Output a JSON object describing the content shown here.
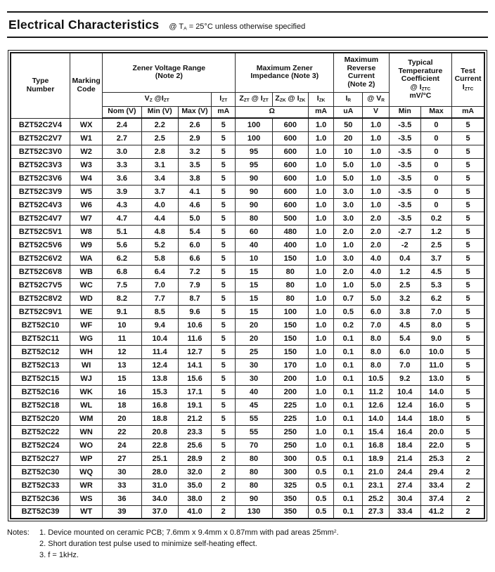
{
  "page": {
    "title": "Electrical Characteristics",
    "subtitle_rich": [
      [
        "@ T",
        0
      ],
      [
        "A",
        1
      ],
      [
        " = 25°C unless otherwise specified",
        0
      ]
    ]
  },
  "table": {
    "header": {
      "type_number": "Type\nNumber",
      "marking_code": "Marking\nCode",
      "zener_voltage_range": "Zener Voltage Range\n(Note 2)",
      "max_zener_impedance": "Maximum Zener\nImpedance (Note 3)",
      "max_reverse_current": "Maximum\nReverse\nCurrent\n(Note 2)",
      "temp_coeff_rich": [
        [
          "Typical\nTemperature\nCoefficient\n@ I",
          0
        ],
        [
          "ZTC",
          1
        ],
        [
          "\nmV/°C",
          0
        ]
      ],
      "test_current_rich": [
        [
          "Test\nCurrent\nI",
          0
        ],
        [
          "ZTC",
          1
        ]
      ],
      "vz_at_izt_rich": [
        [
          "V",
          0
        ],
        [
          "Z",
          1
        ],
        [
          " @I",
          0
        ],
        [
          "ZT",
          1
        ]
      ],
      "izt_rich": [
        [
          "I",
          0
        ],
        [
          "ZT",
          1
        ]
      ],
      "zzt_rich": [
        [
          "Z",
          0
        ],
        [
          "ZT",
          1
        ],
        [
          " @ I",
          0
        ],
        [
          "ZT",
          1
        ]
      ],
      "zzk_rich": [
        [
          "Z",
          0
        ],
        [
          "ZK",
          1
        ],
        [
          " @ I",
          0
        ],
        [
          "ZK",
          1
        ]
      ],
      "izk_rich": [
        [
          "I",
          0
        ],
        [
          "ZK",
          1
        ]
      ],
      "ir_rich": [
        [
          "I",
          0
        ],
        [
          "R",
          1
        ]
      ],
      "vr_rich": [
        [
          "@ V",
          0
        ],
        [
          "R",
          1
        ]
      ],
      "nom": "Nom (V)",
      "min": "Min (V)",
      "max": "Max (V)",
      "ma_izt": "mA",
      "ohm": "Ω",
      "ma_izk": "mA",
      "ua": "uA",
      "v": "V",
      "tc_min": "Min",
      "tc_max": "Max",
      "ma_iztc": "mA"
    },
    "rows": [
      [
        "BZT52C2V4",
        "WX",
        "2.4",
        "2.2",
        "2.6",
        "5",
        "100",
        "600",
        "1.0",
        "50",
        "1.0",
        "-3.5",
        "0",
        "5"
      ],
      [
        "BZT52C2V7",
        "W1",
        "2.7",
        "2.5",
        "2.9",
        "5",
        "100",
        "600",
        "1.0",
        "20",
        "1.0",
        "-3.5",
        "0",
        "5"
      ],
      [
        "BZT52C3V0",
        "W2",
        "3.0",
        "2.8",
        "3.2",
        "5",
        "95",
        "600",
        "1.0",
        "10",
        "1.0",
        "-3.5",
        "0",
        "5"
      ],
      [
        "BZT52C3V3",
        "W3",
        "3.3",
        "3.1",
        "3.5",
        "5",
        "95",
        "600",
        "1.0",
        "5.0",
        "1.0",
        "-3.5",
        "0",
        "5"
      ],
      [
        "BZT52C3V6",
        "W4",
        "3.6",
        "3.4",
        "3.8",
        "5",
        "90",
        "600",
        "1.0",
        "5.0",
        "1.0",
        "-3.5",
        "0",
        "5"
      ],
      [
        "BZT52C3V9",
        "W5",
        "3.9",
        "3.7",
        "4.1",
        "5",
        "90",
        "600",
        "1.0",
        "3.0",
        "1.0",
        "-3.5",
        "0",
        "5"
      ],
      [
        "BZT52C4V3",
        "W6",
        "4.3",
        "4.0",
        "4.6",
        "5",
        "90",
        "600",
        "1.0",
        "3.0",
        "1.0",
        "-3.5",
        "0",
        "5"
      ],
      [
        "BZT52C4V7",
        "W7",
        "4.7",
        "4.4",
        "5.0",
        "5",
        "80",
        "500",
        "1.0",
        "3.0",
        "2.0",
        "-3.5",
        "0.2",
        "5"
      ],
      [
        "BZT52C5V1",
        "W8",
        "5.1",
        "4.8",
        "5.4",
        "5",
        "60",
        "480",
        "1.0",
        "2.0",
        "2.0",
        "-2.7",
        "1.2",
        "5"
      ],
      [
        "BZT52C5V6",
        "W9",
        "5.6",
        "5.2",
        "6.0",
        "5",
        "40",
        "400",
        "1.0",
        "1.0",
        "2.0",
        "-2",
        "2.5",
        "5"
      ],
      [
        "BZT52C6V2",
        "WA",
        "6.2",
        "5.8",
        "6.6",
        "5",
        "10",
        "150",
        "1.0",
        "3.0",
        "4.0",
        "0.4",
        "3.7",
        "5"
      ],
      [
        "BZT52C6V8",
        "WB",
        "6.8",
        "6.4",
        "7.2",
        "5",
        "15",
        "80",
        "1.0",
        "2.0",
        "4.0",
        "1.2",
        "4.5",
        "5"
      ],
      [
        "BZT52C7V5",
        "WC",
        "7.5",
        "7.0",
        "7.9",
        "5",
        "15",
        "80",
        "1.0",
        "1.0",
        "5.0",
        "2.5",
        "5.3",
        "5"
      ],
      [
        "BZT52C8V2",
        "WD",
        "8.2",
        "7.7",
        "8.7",
        "5",
        "15",
        "80",
        "1.0",
        "0.7",
        "5.0",
        "3.2",
        "6.2",
        "5"
      ],
      [
        "BZT52C9V1",
        "WE",
        "9.1",
        "8.5",
        "9.6",
        "5",
        "15",
        "100",
        "1.0",
        "0.5",
        "6.0",
        "3.8",
        "7.0",
        "5"
      ],
      [
        "BZT52C10",
        "WF",
        "10",
        "9.4",
        "10.6",
        "5",
        "20",
        "150",
        "1.0",
        "0.2",
        "7.0",
        "4.5",
        "8.0",
        "5"
      ],
      [
        "BZT52C11",
        "WG",
        "11",
        "10.4",
        "11.6",
        "5",
        "20",
        "150",
        "1.0",
        "0.1",
        "8.0",
        "5.4",
        "9.0",
        "5"
      ],
      [
        "BZT52C12",
        "WH",
        "12",
        "11.4",
        "12.7",
        "5",
        "25",
        "150",
        "1.0",
        "0.1",
        "8.0",
        "6.0",
        "10.0",
        "5"
      ],
      [
        "BZT52C13",
        "WI",
        "13",
        "12.4",
        "14.1",
        "5",
        "30",
        "170",
        "1.0",
        "0.1",
        "8.0",
        "7.0",
        "11.0",
        "5"
      ],
      [
        "BZT52C15",
        "WJ",
        "15",
        "13.8",
        "15.6",
        "5",
        "30",
        "200",
        "1.0",
        "0.1",
        "10.5",
        "9.2",
        "13.0",
        "5"
      ],
      [
        "BZT52C16",
        "WK",
        "16",
        "15.3",
        "17.1",
        "5",
        "40",
        "200",
        "1.0",
        "0.1",
        "11.2",
        "10.4",
        "14.0",
        "5"
      ],
      [
        "BZT52C18",
        "WL",
        "18",
        "16.8",
        "19.1",
        "5",
        "45",
        "225",
        "1.0",
        "0.1",
        "12.6",
        "12.4",
        "16.0",
        "5"
      ],
      [
        "BZT52C20",
        "WM",
        "20",
        "18.8",
        "21.2",
        "5",
        "55",
        "225",
        "1.0",
        "0.1",
        "14.0",
        "14.4",
        "18.0",
        "5"
      ],
      [
        "BZT52C22",
        "WN",
        "22",
        "20.8",
        "23.3",
        "5",
        "55",
        "250",
        "1.0",
        "0.1",
        "15.4",
        "16.4",
        "20.0",
        "5"
      ],
      [
        "BZT52C24",
        "WO",
        "24",
        "22.8",
        "25.6",
        "5",
        "70",
        "250",
        "1.0",
        "0.1",
        "16.8",
        "18.4",
        "22.0",
        "5"
      ],
      [
        "BZT52C27",
        "WP",
        "27",
        "25.1",
        "28.9",
        "2",
        "80",
        "300",
        "0.5",
        "0.1",
        "18.9",
        "21.4",
        "25.3",
        "2"
      ],
      [
        "BZT52C30",
        "WQ",
        "30",
        "28.0",
        "32.0",
        "2",
        "80",
        "300",
        "0.5",
        "0.1",
        "21.0",
        "24.4",
        "29.4",
        "2"
      ],
      [
        "BZT52C33",
        "WR",
        "33",
        "31.0",
        "35.0",
        "2",
        "80",
        "325",
        "0.5",
        "0.1",
        "23.1",
        "27.4",
        "33.4",
        "2"
      ],
      [
        "BZT52C36",
        "WS",
        "36",
        "34.0",
        "38.0",
        "2",
        "90",
        "350",
        "0.5",
        "0.1",
        "25.2",
        "30.4",
        "37.4",
        "2"
      ],
      [
        "BZT52C39",
        "WT",
        "39",
        "37.0",
        "41.0",
        "2",
        "130",
        "350",
        "0.5",
        "0.1",
        "27.3",
        "33.4",
        "41.2",
        "2"
      ]
    ]
  },
  "notes": {
    "label": "Notes:",
    "items_rich": [
      [
        [
          "1. Device mounted on ceramic PCB; 7.6mm x 9.4mm x 0.87mm with pad areas 25mm",
          0
        ],
        [
          "2",
          2
        ],
        [
          ".",
          0
        ]
      ],
      [
        [
          "2. Short duration test pulse used to minimize self-heating effect.",
          0
        ]
      ],
      [
        [
          "3. f = 1kHz.",
          0
        ]
      ]
    ]
  }
}
